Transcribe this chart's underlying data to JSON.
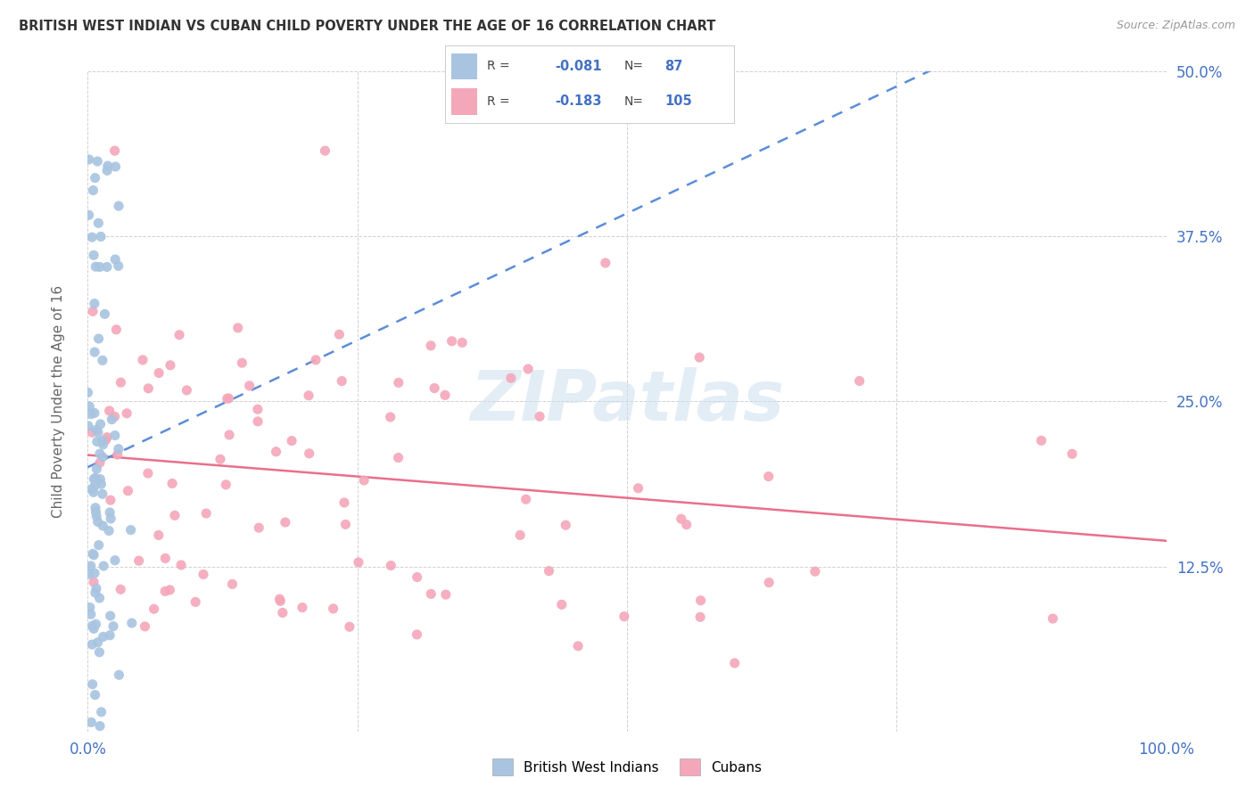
{
  "title": "BRITISH WEST INDIAN VS CUBAN CHILD POVERTY UNDER THE AGE OF 16 CORRELATION CHART",
  "source": "Source: ZipAtlas.com",
  "ylabel": "Child Poverty Under the Age of 16",
  "r_bwi": -0.081,
  "n_bwi": 87,
  "r_cuban": -0.183,
  "n_cuban": 105,
  "color_bwi": "#a8c4e0",
  "color_cuban": "#f4a7b9",
  "color_bwi_line": "#5b8dd9",
  "color_cuban_line": "#e8708a",
  "watermark_color": "#ccdff0",
  "background_color": "#ffffff",
  "title_color": "#333333",
  "axis_label_color": "#4472c4",
  "legend_label_bwi": "British West Indians",
  "legend_label_cuban": "Cubans"
}
